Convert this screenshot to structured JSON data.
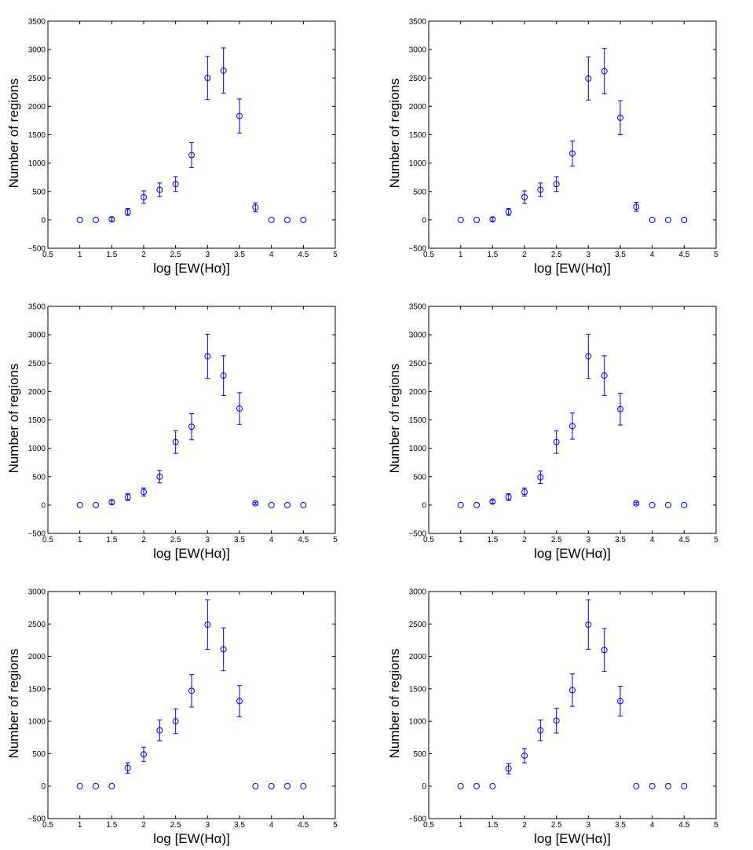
{
  "figure": {
    "panel_count": 6,
    "layout": "3 rows x 2 columns"
  },
  "chart_data": [
    {
      "type": "scatter",
      "title": "",
      "xlabel": "log [EW(Hα)]",
      "ylabel": "Number of regions",
      "xlim": [
        0.5,
        5
      ],
      "ylim": [
        -500,
        3500
      ],
      "xticks": [
        0.5,
        1,
        1.5,
        2,
        2.5,
        3,
        3.5,
        4,
        4.5,
        5
      ],
      "yticks": [
        -500,
        0,
        500,
        1000,
        1500,
        2000,
        2500,
        3000,
        3500
      ],
      "series": [
        {
          "name": "regions",
          "color": "#0000ff",
          "marker": "circle",
          "x": [
            1,
            1.25,
            1.5,
            1.75,
            2,
            2.25,
            2.5,
            2.75,
            3,
            3.25,
            3.5,
            3.75,
            4,
            4.25,
            4.5
          ],
          "y": [
            0,
            0,
            10,
            140,
            400,
            530,
            630,
            1140,
            2500,
            2630,
            1830,
            220,
            0,
            0,
            0
          ],
          "err": [
            0,
            0,
            30,
            60,
            110,
            120,
            130,
            220,
            380,
            400,
            300,
            80,
            0,
            0,
            0
          ]
        }
      ]
    },
    {
      "type": "scatter",
      "title": "",
      "xlabel": "log [EW(Hα)]",
      "ylabel": "Number of regions",
      "xlim": [
        0.5,
        5
      ],
      "ylim": [
        -500,
        3500
      ],
      "xticks": [
        0.5,
        1,
        1.5,
        2,
        2.5,
        3,
        3.5,
        4,
        4.5,
        5
      ],
      "yticks": [
        -500,
        0,
        500,
        1000,
        1500,
        2000,
        2500,
        3000,
        3500
      ],
      "series": [
        {
          "name": "regions",
          "color": "#0000ff",
          "marker": "circle",
          "x": [
            1,
            1.25,
            1.5,
            1.75,
            2,
            2.25,
            2.5,
            2.75,
            3,
            3.25,
            3.5,
            3.75,
            4,
            4.25,
            4.5
          ],
          "y": [
            0,
            0,
            10,
            140,
            400,
            530,
            630,
            1170,
            2490,
            2620,
            1800,
            230,
            0,
            0,
            0
          ],
          "err": [
            0,
            0,
            30,
            60,
            110,
            120,
            130,
            220,
            380,
            400,
            300,
            80,
            0,
            0,
            0
          ]
        }
      ]
    },
    {
      "type": "scatter",
      "title": "",
      "xlabel": "log [EW(Hα)]",
      "ylabel": "Number of regions",
      "xlim": [
        0.5,
        5
      ],
      "ylim": [
        -500,
        3500
      ],
      "xticks": [
        0.5,
        1,
        1.5,
        2,
        2.5,
        3,
        3.5,
        4,
        4.5,
        5
      ],
      "yticks": [
        -500,
        0,
        500,
        1000,
        1500,
        2000,
        2500,
        3000,
        3500
      ],
      "series": [
        {
          "name": "regions",
          "color": "#0000ff",
          "marker": "circle",
          "x": [
            1,
            1.25,
            1.5,
            1.75,
            2,
            2.25,
            2.5,
            2.75,
            3,
            3.25,
            3.5,
            3.75,
            4,
            4.25,
            4.5
          ],
          "y": [
            0,
            0,
            50,
            140,
            230,
            500,
            1110,
            1380,
            2620,
            2280,
            1700,
            30,
            0,
            0,
            0
          ],
          "err": [
            0,
            0,
            30,
            60,
            70,
            110,
            200,
            230,
            390,
            350,
            280,
            20,
            0,
            0,
            0
          ]
        }
      ]
    },
    {
      "type": "scatter",
      "title": "",
      "xlabel": "log [EW(Hα)]",
      "ylabel": "Number of regions",
      "xlim": [
        0.5,
        5
      ],
      "ylim": [
        -500,
        3500
      ],
      "xticks": [
        0.5,
        1,
        1.5,
        2,
        2.5,
        3,
        3.5,
        4,
        4.5,
        5
      ],
      "yticks": [
        -500,
        0,
        500,
        1000,
        1500,
        2000,
        2500,
        3000,
        3500
      ],
      "series": [
        {
          "name": "regions",
          "color": "#0000ff",
          "marker": "circle",
          "x": [
            1,
            1.25,
            1.5,
            1.75,
            2,
            2.25,
            2.5,
            2.75,
            3,
            3.25,
            3.5,
            3.75,
            4,
            4.25,
            4.5
          ],
          "y": [
            0,
            0,
            60,
            140,
            230,
            490,
            1110,
            1390,
            2620,
            2280,
            1690,
            30,
            0,
            0,
            0
          ],
          "err": [
            0,
            0,
            30,
            60,
            70,
            110,
            200,
            230,
            390,
            350,
            280,
            20,
            0,
            0,
            0
          ]
        }
      ]
    },
    {
      "type": "scatter",
      "title": "",
      "xlabel": "log [EW(Hα)]",
      "ylabel": "Number of regions",
      "xlim": [
        0.5,
        5
      ],
      "ylim": [
        -500,
        3000
      ],
      "xticks": [
        0.5,
        1,
        1.5,
        2,
        2.5,
        3,
        3.5,
        4,
        4.5,
        5
      ],
      "yticks": [
        -500,
        0,
        500,
        1000,
        1500,
        2000,
        2500,
        3000
      ],
      "series": [
        {
          "name": "regions",
          "color": "#0000ff",
          "marker": "circle",
          "x": [
            1,
            1.25,
            1.5,
            1.75,
            2,
            2.25,
            2.5,
            2.75,
            3,
            3.25,
            3.5,
            3.75,
            4,
            4.25,
            4.5
          ],
          "y": [
            0,
            0,
            0,
            280,
            490,
            860,
            1000,
            1470,
            2490,
            2110,
            1310,
            0,
            0,
            0,
            0
          ],
          "err": [
            0,
            0,
            0,
            80,
            110,
            160,
            190,
            250,
            380,
            330,
            240,
            0,
            0,
            0,
            0
          ]
        }
      ]
    },
    {
      "type": "scatter",
      "title": "",
      "xlabel": "log [EW(Hα)]",
      "ylabel": "Number of regions",
      "xlim": [
        0.5,
        5
      ],
      "ylim": [
        -500,
        3000
      ],
      "xticks": [
        0.5,
        1,
        1.5,
        2,
        2.5,
        3,
        3.5,
        4,
        4.5,
        5
      ],
      "yticks": [
        -500,
        0,
        500,
        1000,
        1500,
        2000,
        2500,
        3000
      ],
      "series": [
        {
          "name": "regions",
          "color": "#0000ff",
          "marker": "circle",
          "x": [
            1,
            1.25,
            1.5,
            1.75,
            2,
            2.25,
            2.5,
            2.75,
            3,
            3.25,
            3.5,
            3.75,
            4,
            4.25,
            4.5
          ],
          "y": [
            0,
            0,
            0,
            270,
            470,
            860,
            1010,
            1480,
            2490,
            2100,
            1310,
            0,
            0,
            0,
            0
          ],
          "err": [
            0,
            0,
            0,
            80,
            110,
            160,
            190,
            250,
            380,
            330,
            230,
            0,
            0,
            0,
            0
          ]
        }
      ]
    }
  ]
}
